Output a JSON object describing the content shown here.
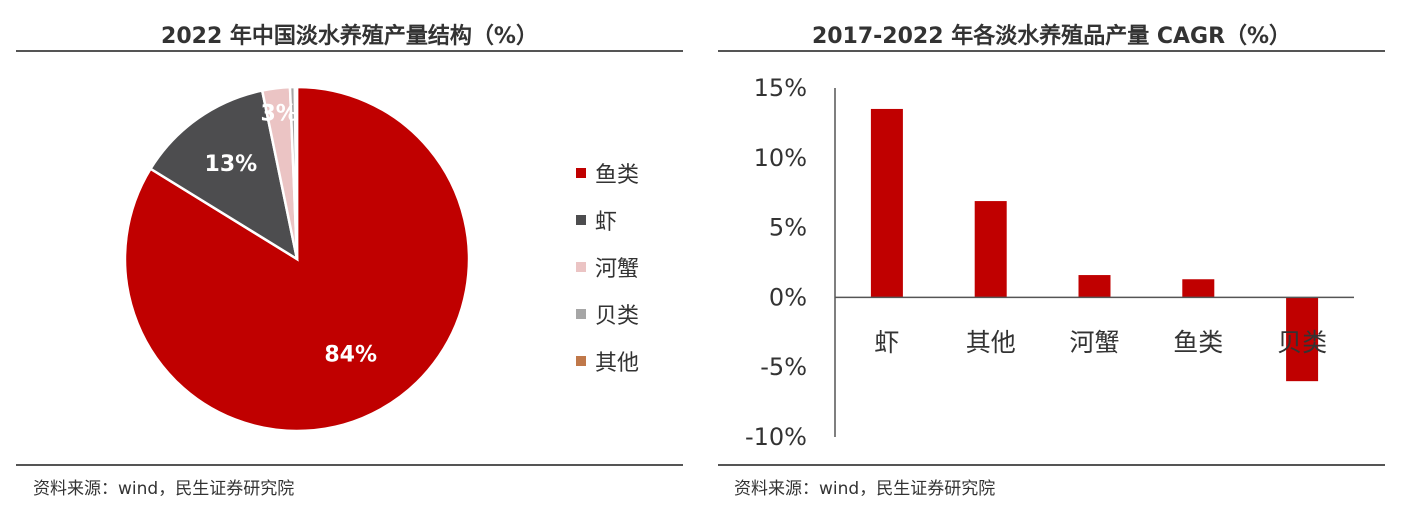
{
  "left": {
    "title": "2022 年中国淡水养殖产量结构（%）",
    "source": "资料来源：wind，民生证券研究院"
  },
  "right": {
    "title": "2017-2022 年各淡水养殖品产量 CAGR（%）",
    "source": "资料来源：wind，民生证券研究院"
  },
  "chart_data": [
    {
      "type": "pie",
      "title": "2022 年中国淡水养殖产量结构（%）",
      "slices": [
        {
          "label": "鱼类",
          "value": 84,
          "display": "84%",
          "color": "#C00000"
        },
        {
          "label": "虾",
          "value": 13,
          "display": "13%",
          "color": "#4D4D4F"
        },
        {
          "label": "河蟹",
          "value": 2.6,
          "display": "3%",
          "color": "#EBC4C4"
        },
        {
          "label": "贝类",
          "value": 0.45,
          "display": "",
          "color": "#A6A6A6"
        },
        {
          "label": "其他",
          "value": 0.2,
          "display": "",
          "color": "#C0784A"
        }
      ],
      "legend_position": "right"
    },
    {
      "type": "bar",
      "title": "2017-2022 年各淡水养殖品产量 CAGR（%）",
      "categories": [
        "虾",
        "其他",
        "河蟹",
        "鱼类",
        "贝类"
      ],
      "values": [
        13.5,
        6.9,
        1.6,
        1.3,
        -6.0
      ],
      "color": "#C00000",
      "ylim": [
        -10,
        15
      ],
      "yticks": [
        15,
        10,
        5,
        0,
        -5,
        -10
      ],
      "ytick_labels": [
        "15%",
        "10%",
        "5%",
        "0%",
        "-5%",
        "-10%"
      ],
      "grid": false
    }
  ]
}
